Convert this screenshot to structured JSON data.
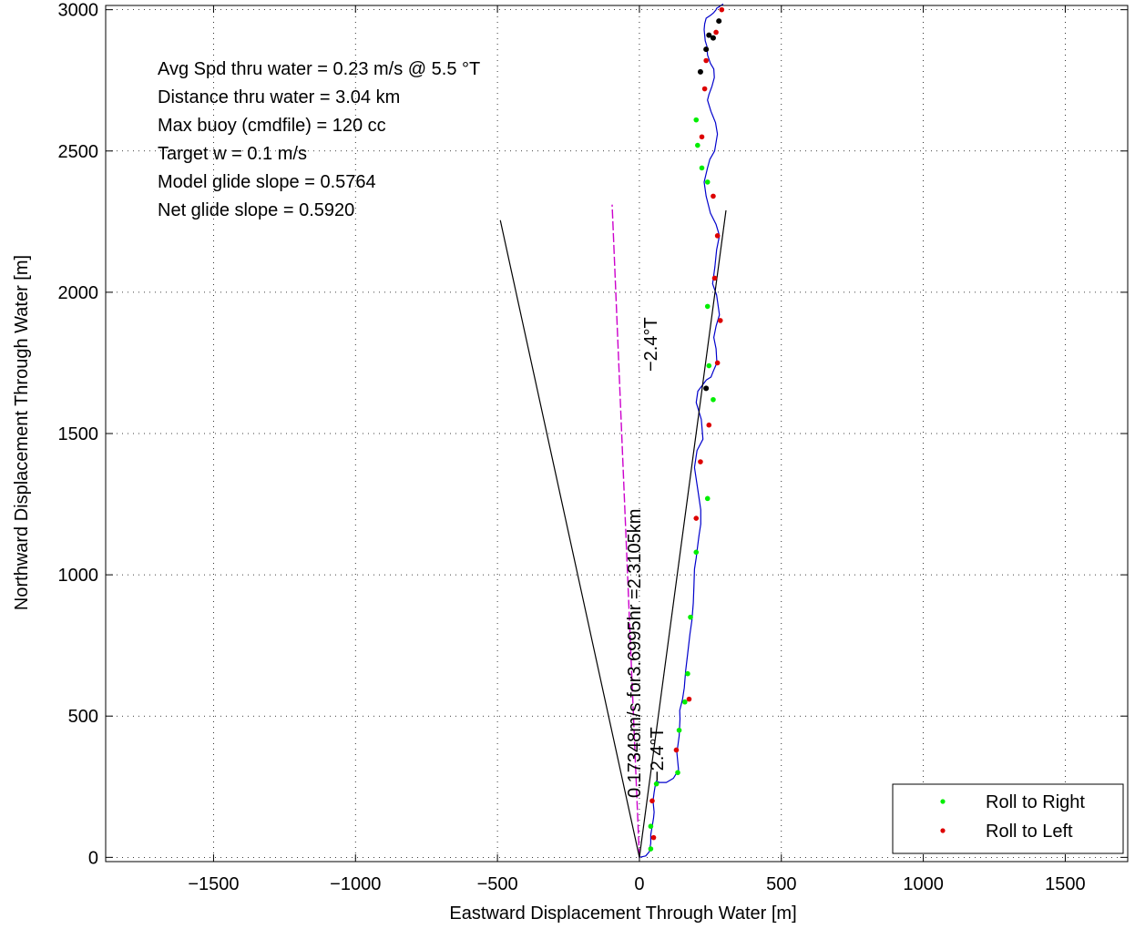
{
  "chart_data": {
    "type": "line",
    "xlabel": "Eastward Displacement Through Water [m]",
    "ylabel": "Northward Displacement Through Water [m]",
    "xlim": [
      -1880,
      1720
    ],
    "ylim": [
      -15,
      3015
    ],
    "xticks": [
      -1500,
      -1000,
      -500,
      0,
      500,
      1000,
      1500
    ],
    "yticks": [
      0,
      500,
      1000,
      1500,
      2000,
      2500,
      3000
    ],
    "xtick_labels": [
      "−1500",
      "−1000",
      "−500",
      "0",
      "500",
      "1000",
      "1500"
    ],
    "ytick_labels": [
      "0",
      "500",
      "1000",
      "1500",
      "2000",
      "2500",
      "3000"
    ],
    "grid": true,
    "legend_position": "bottom-right",
    "legend": [
      {
        "label": "Roll to Right",
        "color": "#00ee00"
      },
      {
        "label": "Roll to Left",
        "color": "#dd0000"
      }
    ],
    "annotations": [
      "Avg Spd thru water =  0.23 m/s @   5.5   °T",
      "Distance thru water =  3.04 km",
      "Max buoy (cmdfile) = 120 cc",
      "Target w = 0.1 m/s",
      "Model glide slope = 0.5764",
      "Net glide slope = 0.5920"
    ],
    "rotated_labels": {
      "heading_top": "−2.4°T",
      "heading_bottom": "−2.4°T",
      "drift": "0.17348m/s for3.6995hr =2.3105km"
    },
    "series": [
      {
        "kind": "track",
        "color": "#0000cc",
        "x": [
          0,
          22,
          35,
          40,
          40,
          45,
          50,
          52,
          48,
          52,
          55,
          57,
          60,
          70,
          95,
          120,
          138,
          132,
          140,
          143,
          142,
          152,
          158,
          163,
          170,
          178,
          185,
          190,
          192,
          194,
          200,
          205,
          210,
          216,
          216,
          206,
          194,
          203,
          224,
          218,
          200,
          206,
          236,
          252,
          260,
          273,
          270,
          262,
          270,
          282,
          272,
          258,
          266,
          272,
          282,
          270,
          250,
          235,
          228,
          240,
          248,
          265,
          275,
          268,
          252,
          240,
          245,
          256,
          264,
          262,
          250,
          240,
          238,
          232,
          230,
          228,
          230,
          235,
          250,
          262,
          270,
          272,
          280,
          295
        ],
        "y": [
          0,
          5,
          20,
          50,
          80,
          110,
          140,
          160,
          200,
          230,
          250,
          260,
          270,
          265,
          265,
          280,
          310,
          370,
          430,
          490,
          520,
          560,
          600,
          660,
          720,
          790,
          840,
          900,
          960,
          1020,
          1060,
          1100,
          1140,
          1180,
          1230,
          1300,
          1380,
          1440,
          1480,
          1550,
          1610,
          1650,
          1690,
          1700,
          1720,
          1750,
          1800,
          1840,
          1880,
          1920,
          1990,
          2030,
          2090,
          2150,
          2200,
          2240,
          2280,
          2340,
          2390,
          2440,
          2470,
          2500,
          2560,
          2600,
          2640,
          2680,
          2700,
          2730,
          2760,
          2790,
          2810,
          2840,
          2870,
          2890,
          2910,
          2930,
          2950,
          2970,
          2980,
          2990,
          3000,
          3005,
          3010,
          3020
        ]
      },
      {
        "kind": "drift-line",
        "color": "#cc00cc",
        "x": [
          0,
          -96
        ],
        "y": [
          0,
          2310
        ]
      },
      {
        "kind": "glide-slope-bounds",
        "color": "#000000",
        "lines": [
          {
            "x": [
              0,
              -490
            ],
            "y": [
              0,
              2255
            ]
          },
          {
            "x": [
              0,
              305
            ],
            "y": [
              0,
              2290
            ]
          }
        ]
      }
    ],
    "roll_right_points": [
      {
        "x": 40,
        "y": 30
      },
      {
        "x": 40,
        "y": 110
      },
      {
        "x": 60,
        "y": 260
      },
      {
        "x": 135,
        "y": 300
      },
      {
        "x": 140,
        "y": 450
      },
      {
        "x": 160,
        "y": 550
      },
      {
        "x": 170,
        "y": 650
      },
      {
        "x": 180,
        "y": 850
      },
      {
        "x": 200,
        "y": 1080
      },
      {
        "x": 240,
        "y": 1270
      },
      {
        "x": 260,
        "y": 1620
      },
      {
        "x": 245,
        "y": 1740
      },
      {
        "x": 240,
        "y": 1950
      },
      {
        "x": 240,
        "y": 2390
      },
      {
        "x": 220,
        "y": 2440
      },
      {
        "x": 205,
        "y": 2520
      },
      {
        "x": 200,
        "y": 2610
      }
    ],
    "roll_left_points": [
      {
        "x": 50,
        "y": 70
      },
      {
        "x": 45,
        "y": 200
      },
      {
        "x": 130,
        "y": 380
      },
      {
        "x": 175,
        "y": 560
      },
      {
        "x": 200,
        "y": 1200
      },
      {
        "x": 215,
        "y": 1400
      },
      {
        "x": 245,
        "y": 1530
      },
      {
        "x": 275,
        "y": 1750
      },
      {
        "x": 285,
        "y": 1900
      },
      {
        "x": 265,
        "y": 2050
      },
      {
        "x": 275,
        "y": 2200
      },
      {
        "x": 260,
        "y": 2340
      },
      {
        "x": 220,
        "y": 2550
      },
      {
        "x": 230,
        "y": 2720
      },
      {
        "x": 235,
        "y": 2820
      },
      {
        "x": 270,
        "y": 2920
      },
      {
        "x": 290,
        "y": 3000
      }
    ],
    "black_points": [
      {
        "x": 235,
        "y": 1660
      },
      {
        "x": 215,
        "y": 2780
      },
      {
        "x": 235,
        "y": 2860
      },
      {
        "x": 260,
        "y": 2900
      },
      {
        "x": 280,
        "y": 2960
      },
      {
        "x": 245,
        "y": 2910
      }
    ]
  }
}
